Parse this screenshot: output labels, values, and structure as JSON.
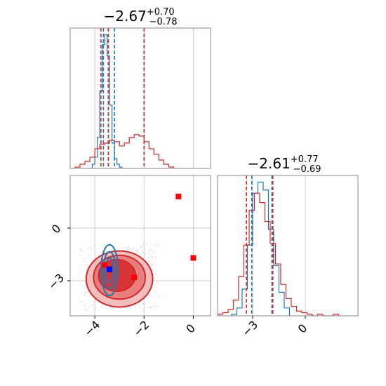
{
  "chart_data": {
    "type": "corner",
    "colors": {
      "red": "#d62728",
      "blue": "#1f77b4",
      "marker_red": "#ff0000",
      "marker_blue": "#0000ff"
    },
    "grid": true,
    "panels": [
      {
        "id": "marginal-1",
        "kind": "histogram",
        "title": {
          "main": "−2.67",
          "sup": "+0.70",
          "sub": "−0.78"
        },
        "xlim": [
          -5.0,
          0.7
        ],
        "xticks": [
          -4,
          -2,
          0
        ],
        "series": [
          {
            "name": "",
            "color": "#1f77b4",
            "bins_x": [
              -4.3,
              -4.1,
              -4.0,
              -3.9,
              -3.8,
              -3.7,
              -3.6,
              -3.5,
              -3.4,
              -3.3,
              -3.2,
              -3.1,
              -3.0,
              -2.9,
              -2.8
            ],
            "counts": [
              0,
              0.03,
              0.08,
              0.22,
              0.55,
              0.88,
              0.95,
              0.8,
              0.45,
              0.18,
              0.07,
              0.03,
              0.01,
              0.0
            ]
          },
          {
            "name": "",
            "color": "#d62728",
            "bins_x": [
              -4.8,
              -4.6,
              -4.4,
              -4.2,
              -4.0,
              -3.8,
              -3.6,
              -3.4,
              -3.2,
              -3.0,
              -2.8,
              -2.6,
              -2.4,
              -2.2,
              -2.0,
              -1.8,
              -1.6,
              -1.4,
              -1.2,
              -1.0,
              -0.8
            ],
            "counts": [
              0.01,
              0.03,
              0.05,
              0.08,
              0.14,
              0.17,
              0.18,
              0.2,
              0.19,
              0.16,
              0.18,
              0.22,
              0.24,
              0.23,
              0.19,
              0.14,
              0.1,
              0.06,
              0.03,
              0.01
            ]
          }
        ],
        "quantile_lines": [
          {
            "x": -3.65,
            "color": "#1f77b4"
          },
          {
            "x": -3.45,
            "color": "#1f77b4"
          },
          {
            "x": -3.2,
            "color": "#1f77b4"
          },
          {
            "x": -3.75,
            "color": "#d62728"
          },
          {
            "x": -3.45,
            "color": "#d62728"
          },
          {
            "x": -2.0,
            "color": "#d62728"
          }
        ]
      },
      {
        "id": "joint",
        "kind": "2d-density",
        "xlim": [
          -5.0,
          0.7
        ],
        "ylim": [
          -5.0,
          3.0
        ],
        "xticks": [
          -4,
          -2,
          0
        ],
        "yticks": [
          0,
          -3
        ],
        "contours_red": [
          {
            "cx": -3.0,
            "cy": -2.9,
            "rx": 1.35,
            "ry": 1.6,
            "level": "outer"
          },
          {
            "cx": -3.0,
            "cy": -2.8,
            "rx": 1.05,
            "ry": 1.25,
            "level": "mid"
          },
          {
            "cx": -3.1,
            "cy": -2.7,
            "rx": 0.75,
            "ry": 0.9,
            "level": "inner"
          }
        ],
        "contours_blue": [
          {
            "cx": -3.4,
            "cy": -2.4,
            "rx": 0.35,
            "ry": 1.45
          },
          {
            "cx": -3.4,
            "cy": -2.4,
            "rx": 0.25,
            "ry": 1.05
          },
          {
            "cx": -3.4,
            "cy": -2.4,
            "rx": 0.15,
            "ry": 0.7
          }
        ],
        "markers": [
          {
            "x": -0.6,
            "y": 1.8,
            "color": "#ff0000"
          },
          {
            "x": 0.0,
            "y": -1.7,
            "color": "#ff0000"
          },
          {
            "x": -3.6,
            "y": -2.1,
            "color": "#ff0000"
          },
          {
            "x": -2.4,
            "y": -2.8,
            "color": "#ff0000"
          },
          {
            "x": -3.4,
            "y": -2.35,
            "color": "#0000ff"
          }
        ]
      },
      {
        "id": "marginal-2",
        "kind": "histogram",
        "title": {
          "main": "−2.61",
          "sup": "+0.77",
          "sub": "−0.69"
        },
        "xlim": [
          -5.0,
          3.0
        ],
        "xticks": [
          -3,
          0
        ],
        "series": [
          {
            "name": "",
            "color": "#1f77b4",
            "bins_x": [
              -4.2,
              -3.9,
              -3.6,
              -3.3,
              -3.0,
              -2.7,
              -2.4,
              -2.1,
              -1.8,
              -1.5,
              -1.2,
              -0.9
            ],
            "counts": [
              0.01,
              0.05,
              0.17,
              0.45,
              0.78,
              0.85,
              0.8,
              0.55,
              0.32,
              0.15,
              0.05
            ]
          },
          {
            "name": "",
            "color": "#d62728",
            "bins_x": [
              -5.0,
              -4.7,
              -4.4,
              -4.1,
              -3.8,
              -3.5,
              -3.2,
              -2.9,
              -2.6,
              -2.3,
              -2.0,
              -1.7,
              -1.4,
              -1.1,
              -0.8,
              -0.5,
              -0.2,
              0.1,
              0.4,
              0.7,
              1.0,
              1.3,
              1.6,
              1.9
            ],
            "counts": [
              0.01,
              0.02,
              0.04,
              0.1,
              0.25,
              0.45,
              0.67,
              0.78,
              0.72,
              0.6,
              0.46,
              0.33,
              0.2,
              0.11,
              0.06,
              0.03,
              0.02,
              0.01,
              0.0,
              0.01,
              0.0,
              0.0,
              0.01
            ]
          }
        ],
        "quantile_lines": [
          {
            "x": -3.35,
            "color": "#d62728"
          },
          {
            "x": -3.05,
            "color": "#1f77b4"
          },
          {
            "x": -1.9,
            "color": "#1f77b4"
          },
          {
            "x": -1.85,
            "color": "#d62728"
          }
        ]
      }
    ]
  }
}
